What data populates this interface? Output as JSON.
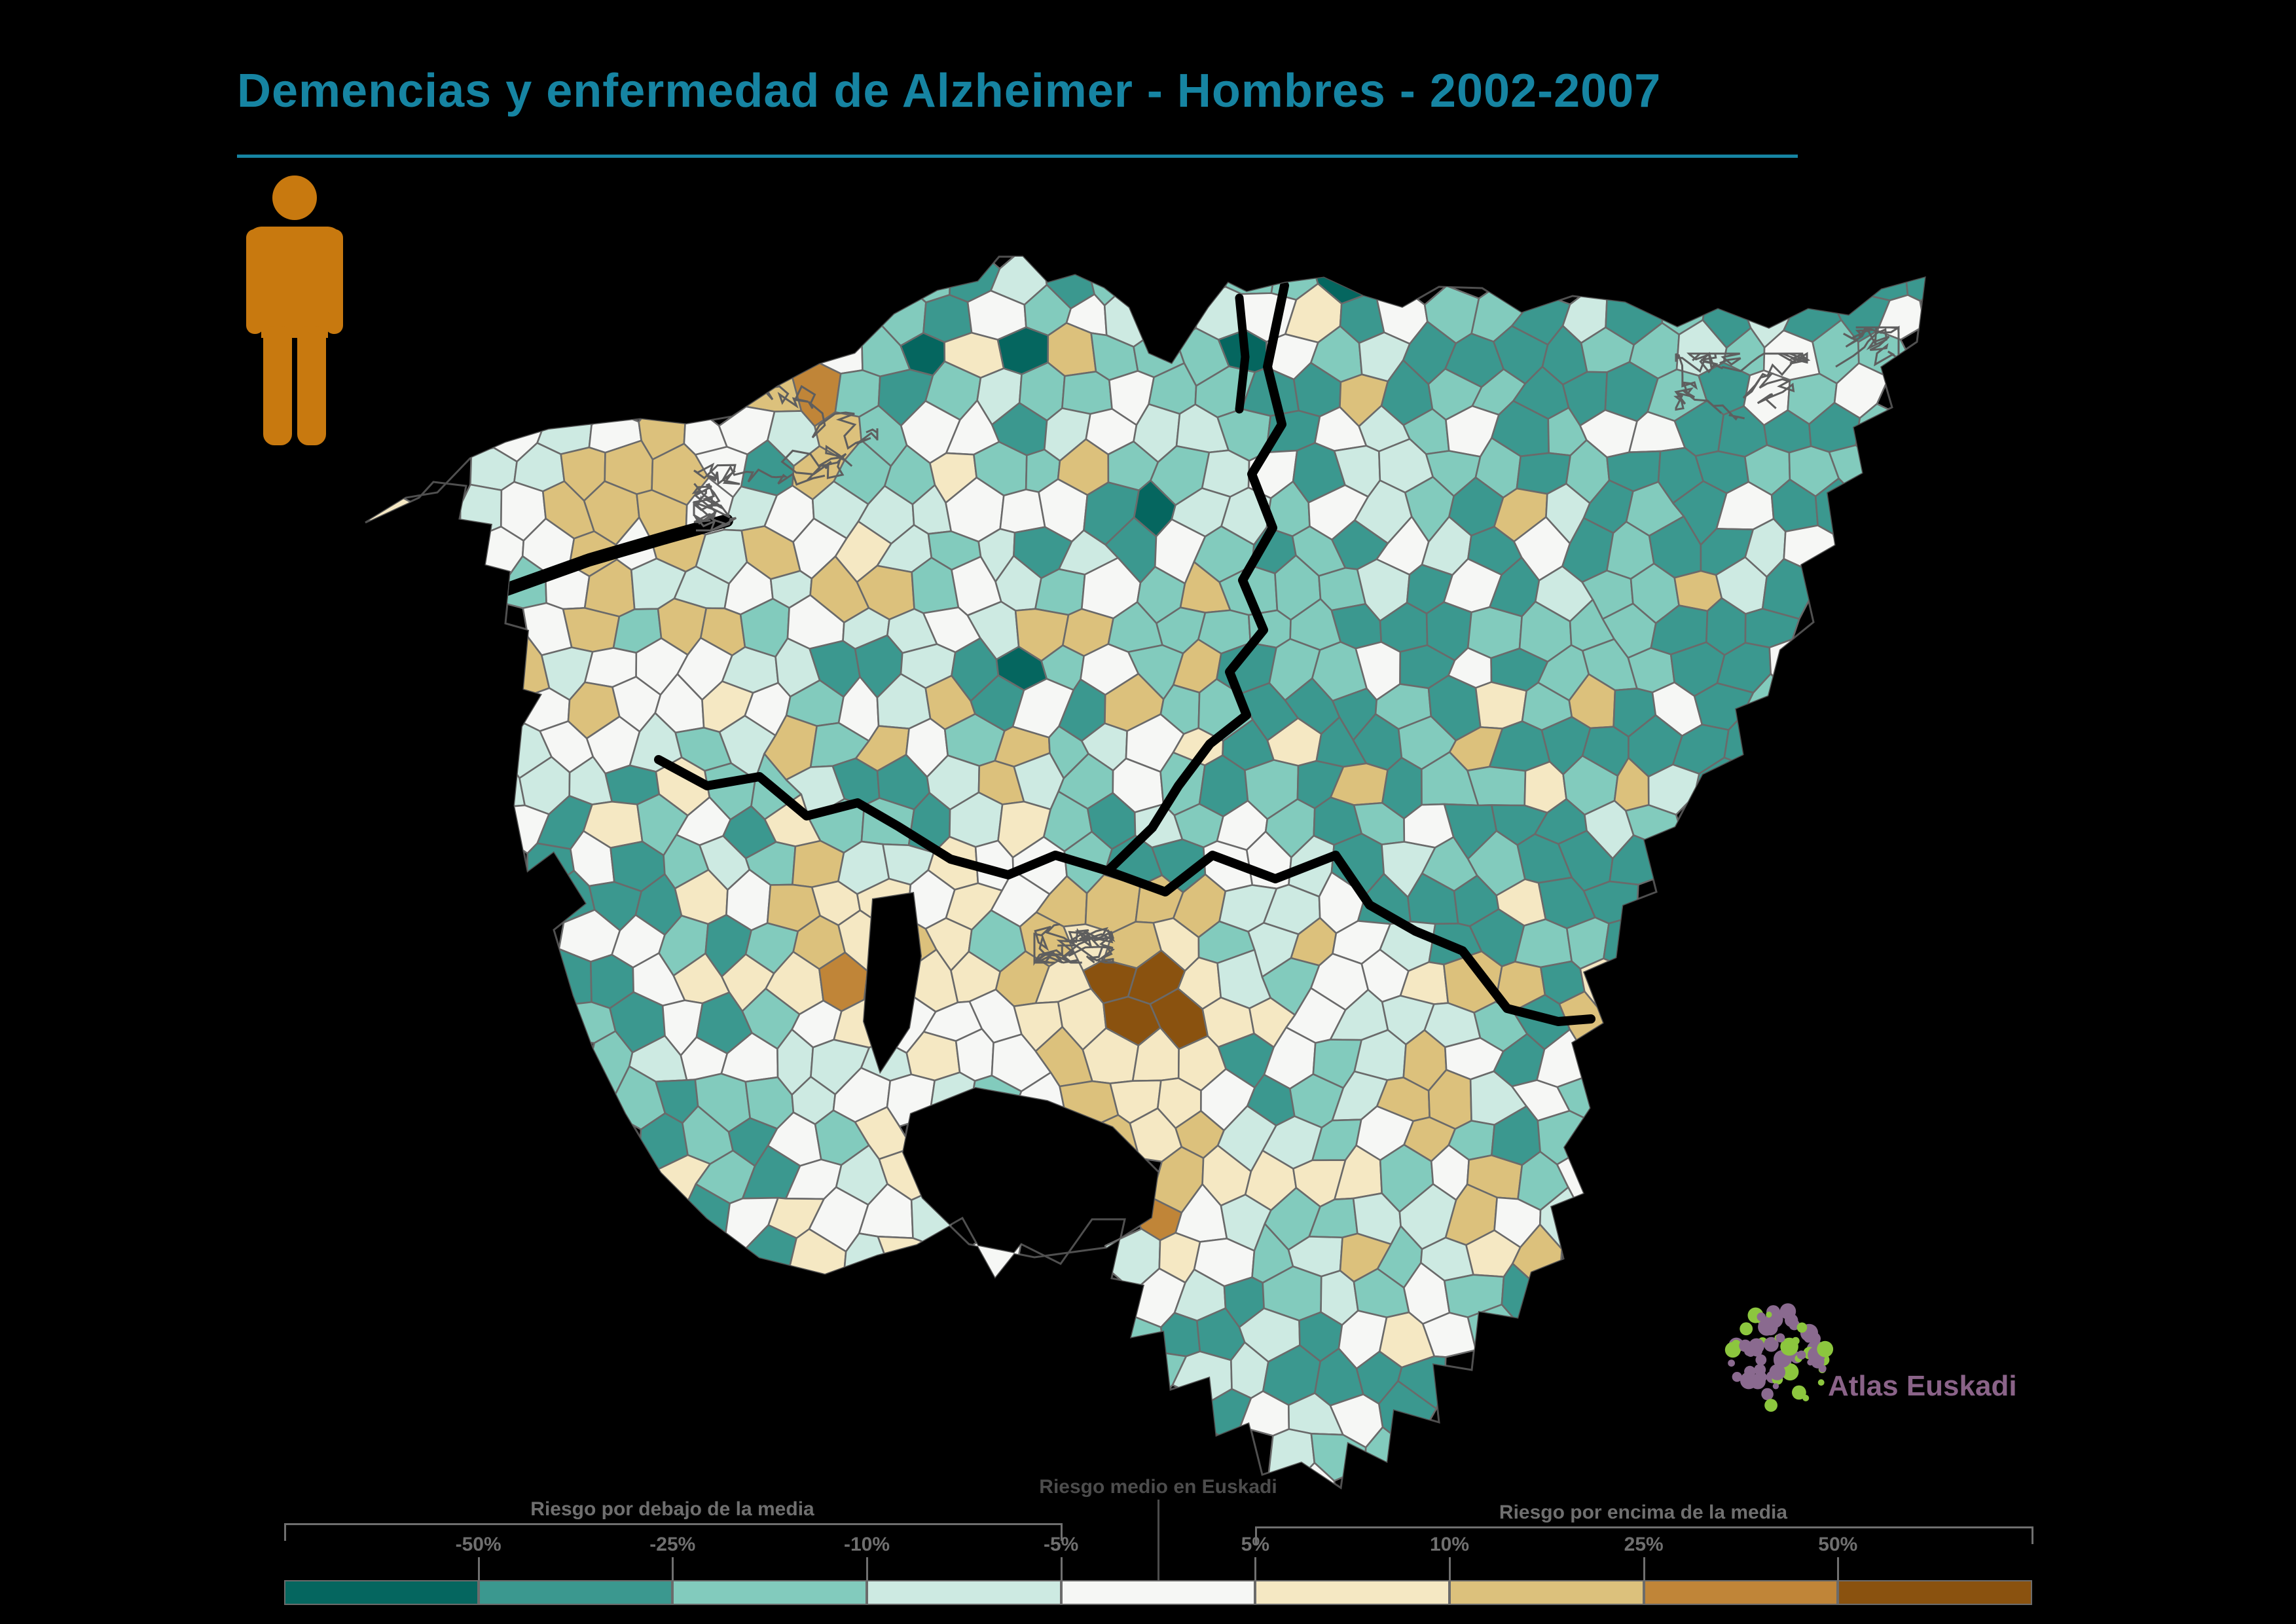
{
  "title": {
    "text": "Demencias y enfermedad de Alzheimer - Hombres - 2002-2007",
    "color": "#1684a2"
  },
  "male_icon": {
    "color": "#c8790f"
  },
  "map": {
    "background": "#000000",
    "municipality_border_color": "#6a6a6a",
    "province_border_color": "#000000",
    "urban_area_color": "#5e5e5e",
    "coast_rim_color": "#4f4f4f"
  },
  "legend": {
    "below": {
      "label": "Riesgo por debajo de la media"
    },
    "middle": {
      "label": "Riesgo medio en Euskadi"
    },
    "above": {
      "label": "Riesgo por encima de la media"
    },
    "ticks": [
      "-50%",
      "-25%",
      "-10%",
      "-5%",
      "5%",
      "10%",
      "25%",
      "50%"
    ],
    "colors": [
      "#05665f",
      "#3b988f",
      "#82cbbd",
      "#cdeae2",
      "#f6f7f5",
      "#f5e8c3",
      "#dcc17c",
      "#c08538",
      "#8a520f"
    ],
    "label_color": "#6f6f6f",
    "middle_label_color": "#4c4c4c",
    "bar_border_color": "#6b6b6b"
  },
  "logo": {
    "text": "Atlas Euskadi",
    "text_color": "#8a6388",
    "dot_green": "#8cc63e",
    "dot_purple": "#8a6a8f"
  }
}
